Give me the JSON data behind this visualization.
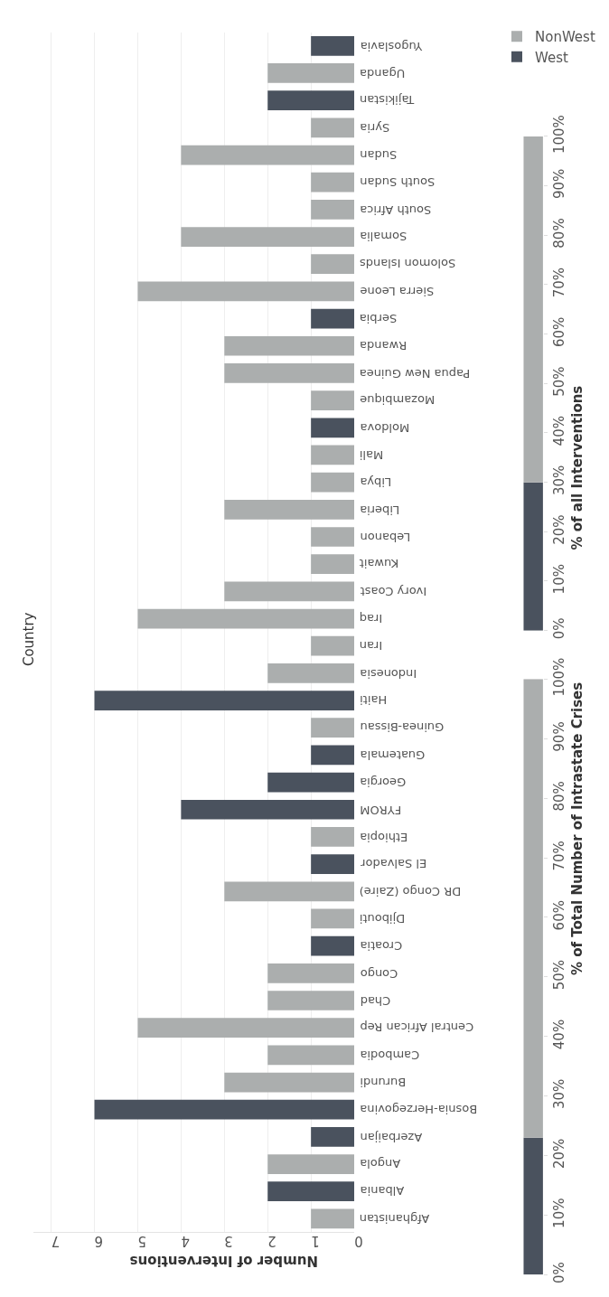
{
  "chart_data": [
    {
      "type": "bar",
      "orientation": "horizontal",
      "stacked": true,
      "ylabel": "Country",
      "xlabel": "Number of Interventions",
      "categories": [
        "Yugoslavia",
        "Uganda",
        "Tajikistan",
        "Syria",
        "Sudan",
        "South Sudan",
        "South Africa",
        "Somalia",
        "Solomon Islands",
        "Sierra Leone",
        "Serbia",
        "Rwanda",
        "Papua New Guinea",
        "Mozambique",
        "Moldova",
        "Mali",
        "Libya",
        "Liberia",
        "Lebanon",
        "Kuwait",
        "Ivory Coast",
        "Iraq",
        "Iran",
        "Indonesia",
        "Haiti",
        "Guinea-Bissau",
        "Guatemala",
        "Georgia",
        "FYROM",
        "Ethiopia",
        "El Salvador",
        "DR Congo (Zaire)",
        "Djibouti",
        "Croatia",
        "Congo",
        "Chad",
        "Central African Rep",
        "Cambodia",
        "Burundi",
        "Bosnia-Herzegovina",
        "Azerbaijan",
        "Angola",
        "Albania",
        "Afghanistan"
      ],
      "series": [
        {
          "name": "NonWest",
          "color": "#abaeae",
          "values": [
            null,
            2,
            null,
            1,
            4,
            1,
            1,
            4,
            1,
            5,
            null,
            3,
            3,
            1,
            null,
            1,
            1,
            3,
            1,
            1,
            3,
            5,
            1,
            2,
            null,
            1,
            null,
            null,
            null,
            1,
            null,
            3,
            1,
            null,
            2,
            2,
            5,
            2,
            3,
            null,
            null,
            2,
            null,
            1
          ]
        },
        {
          "name": "West",
          "color": "#4a525e",
          "values": [
            1,
            null,
            2,
            null,
            null,
            null,
            null,
            null,
            null,
            null,
            1,
            null,
            null,
            null,
            1,
            null,
            null,
            null,
            null,
            null,
            null,
            null,
            null,
            null,
            6,
            null,
            1,
            2,
            4,
            null,
            1,
            null,
            null,
            1,
            null,
            null,
            null,
            null,
            null,
            6,
            1,
            null,
            2,
            null
          ]
        }
      ],
      "xlim": [
        7.4,
        0
      ],
      "xticks": [
        0,
        1,
        2,
        3,
        4,
        5,
        6,
        7
      ],
      "grid": "x",
      "legend": "top right"
    },
    {
      "type": "bar",
      "stacked": true,
      "ylabel": "% of Total Number of Intrastate Crises",
      "categories": [
        null
      ],
      "series": [
        {
          "color": "#4a525e",
          "values": [
            23
          ]
        },
        {
          "color": "#abaeae",
          "values": [
            77
          ]
        }
      ],
      "ylim": [
        0,
        100
      ],
      "yticks": [
        {
          "value": 0,
          "label": "0%"
        },
        {
          "value": 10,
          "label": "10%"
        },
        {
          "value": 20,
          "label": "20%"
        },
        {
          "value": 30,
          "label": "30%"
        },
        {
          "value": 40,
          "label": "40%"
        },
        {
          "value": 50,
          "label": "50%"
        },
        {
          "value": 60,
          "label": "60%"
        },
        {
          "value": 70,
          "label": "70%"
        },
        {
          "value": 80,
          "label": "80%"
        },
        {
          "value": 90,
          "label": "90%"
        },
        {
          "value": 100,
          "label": "100%"
        }
      ]
    },
    {
      "type": "bar",
      "stacked": true,
      "ylabel": "% of all Interventions",
      "categories": [
        null
      ],
      "series": [
        {
          "color": "#4a525e",
          "values": [
            30
          ]
        },
        {
          "color": "#abaeae",
          "values": [
            70
          ]
        }
      ],
      "ylim": [
        0,
        100
      ],
      "yticks": [
        {
          "value": 0,
          "label": "0%"
        },
        {
          "value": 10,
          "label": "10%"
        },
        {
          "value": 20,
          "label": "20%"
        },
        {
          "value": 30,
          "label": "30%"
        },
        {
          "value": 40,
          "label": "40%"
        },
        {
          "value": 50,
          "label": "50%"
        },
        {
          "value": 60,
          "label": "60%"
        },
        {
          "value": 70,
          "label": "70%"
        },
        {
          "value": 80,
          "label": "80%"
        },
        {
          "value": 90,
          "label": "90%"
        },
        {
          "value": 100,
          "label": "100%"
        }
      ]
    }
  ]
}
